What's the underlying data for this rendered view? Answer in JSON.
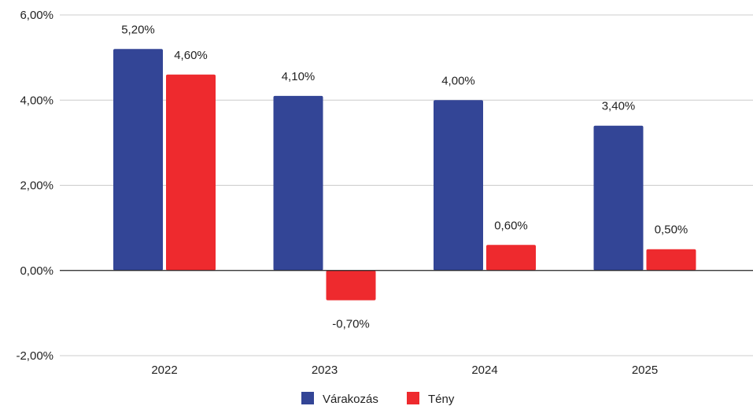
{
  "chart_data": {
    "type": "bar",
    "categories": [
      "2022",
      "2023",
      "2024",
      "2025"
    ],
    "series": [
      {
        "name": "Várakozás",
        "values": [
          5.2,
          4.1,
          4.0,
          3.4
        ],
        "labels": [
          "5,20%",
          "4,10%",
          "4,00%",
          "3,40%"
        ],
        "color": "#334596"
      },
      {
        "name": "Tény",
        "values": [
          4.6,
          -0.7,
          0.6,
          0.5
        ],
        "labels": [
          "4,60%",
          "-0,70%",
          "0,60%",
          "0,50%"
        ],
        "color": "#ee2a2e"
      }
    ],
    "y_ticks": [
      6,
      4,
      2,
      0,
      -2
    ],
    "y_tick_labels": [
      "6,00%",
      "4,00%",
      "2,00%",
      "0,00%",
      "-2,00%"
    ],
    "ylim": [
      -2,
      6
    ],
    "grid": true,
    "legend_position": "bottom",
    "title": "",
    "xlabel": "",
    "ylabel": ""
  }
}
